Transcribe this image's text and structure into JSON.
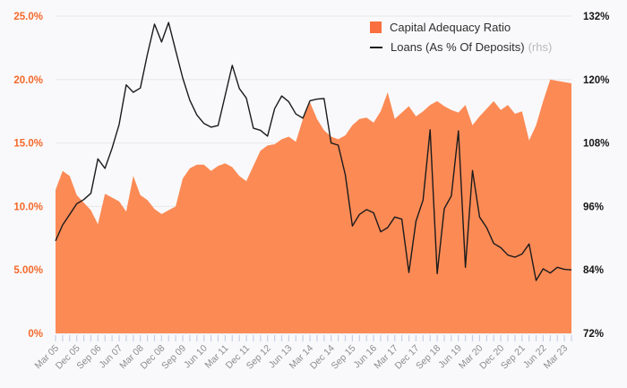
{
  "chart_data": {
    "type": "area",
    "tick_labels": [
      "Mar 05",
      "Dec 05",
      "Sep 06",
      "Jun 07",
      "Mar 08",
      "Dec 08",
      "Sep 09",
      "Jun 10",
      "Mar 11",
      "Dec 11",
      "Sep 12",
      "Jun 13",
      "Mar 14",
      "Dec 14",
      "Sep 15",
      "Jun 16",
      "Mar 17",
      "Dec 17",
      "Sep 18",
      "Jun 19",
      "Mar 20",
      "Dec 20",
      "Sep 21",
      "Jun 22",
      "Mar 23"
    ],
    "label_every_n_points": 3,
    "series": [
      {
        "name": "Capital Adequacy Ratio",
        "type": "area",
        "axis": "left",
        "values": [
          11.3,
          12.8,
          12.4,
          10.9,
          10.3,
          9.7,
          8.6,
          11.0,
          10.7,
          10.4,
          9.6,
          12.4,
          10.9,
          10.5,
          9.8,
          9.4,
          9.7,
          10.0,
          12.2,
          13.0,
          13.3,
          13.3,
          12.8,
          13.2,
          13.4,
          13.1,
          12.4,
          12.0,
          13.2,
          14.4,
          14.8,
          14.9,
          15.3,
          15.5,
          15.1,
          16.9,
          18.2,
          16.9,
          16.0,
          15.5,
          15.3,
          15.6,
          16.4,
          16.9,
          17.0,
          16.6,
          17.5,
          19.0,
          16.9,
          17.4,
          17.9,
          17.1,
          17.5,
          18.0,
          18.3,
          17.9,
          17.6,
          17.4,
          18.0,
          16.4,
          17.1,
          17.7,
          18.3,
          17.6,
          18.0,
          17.3,
          17.5,
          15.2,
          16.4,
          18.3,
          20.0,
          19.9,
          19.8,
          19.7
        ]
      },
      {
        "name": "Loans (As % Of Deposits)",
        "suffix": "(rhs)",
        "type": "line",
        "axis": "right",
        "values": [
          89.5,
          92.5,
          94.5,
          96.5,
          97.3,
          98.5,
          105.0,
          103.2,
          107.0,
          111.5,
          119.0,
          117.6,
          118.4,
          124.8,
          130.5,
          127.1,
          130.8,
          125.5,
          120.3,
          116.1,
          113.3,
          111.7,
          111.0,
          111.3,
          117.0,
          122.7,
          118.3,
          116.5,
          110.8,
          110.4,
          109.3,
          114.5,
          116.9,
          115.8,
          113.5,
          112.7,
          116.0,
          116.3,
          116.4,
          108.0,
          107.6,
          102.0,
          92.3,
          94.5,
          95.4,
          94.8,
          91.2,
          92.0,
          94.0,
          93.6,
          83.5,
          93.2,
          97.2,
          110.5,
          83.3,
          95.6,
          98.0,
          110.3,
          84.5,
          102.8,
          94.0,
          92.0,
          89.0,
          88.2,
          86.8,
          86.4,
          87.0,
          88.9,
          82.0,
          84.2,
          83.4,
          84.5,
          84.1,
          84.0
        ]
      }
    ],
    "left_axis": {
      "ticks": [
        "25.0%",
        "20.0%",
        "15.0%",
        "10.0%",
        "5.00%",
        "0%"
      ],
      "values": [
        25,
        20,
        15,
        10,
        5,
        0
      ],
      "range": [
        0,
        25
      ]
    },
    "right_axis": {
      "ticks": [
        "132%",
        "120%",
        "108%",
        "96%",
        "84%",
        "72%"
      ],
      "values": [
        132,
        120,
        108,
        96,
        84,
        72
      ],
      "range": [
        72,
        132
      ]
    },
    "grid": true,
    "legend_position": "top-right"
  },
  "legend": {
    "items": [
      {
        "label": "Capital Adequacy Ratio"
      },
      {
        "label": "Loans (As % Of Deposits)",
        "suffix": "(rhs)"
      }
    ]
  },
  "colors": {
    "background": "#f9f9fb",
    "grid": "#e7e7e7",
    "area_fill": "#fc8a55",
    "legend_swatch": "#f96f3f",
    "line": "#1b1b1b",
    "left_axis_label": "#f4692a",
    "right_axis_label": "#161616",
    "x_label": "#8d8d8d",
    "tick_mark": "#c9cfe6"
  }
}
